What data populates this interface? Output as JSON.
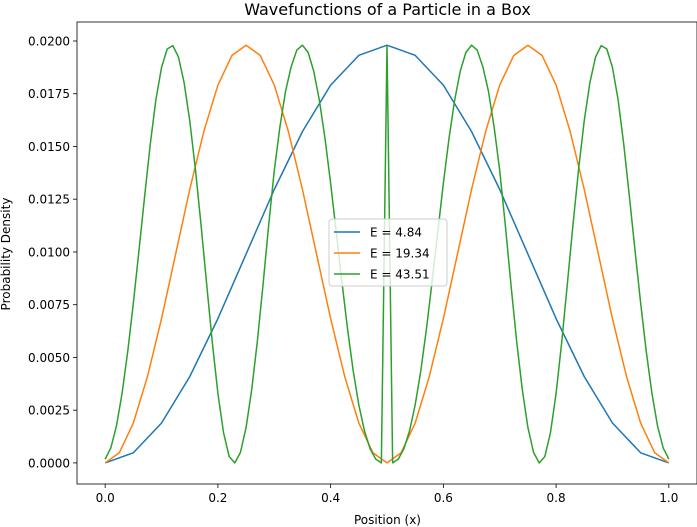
{
  "chart_data": {
    "type": "line",
    "title": "Wavefunctions of a Particle in a Box",
    "xlabel": "Position (x)",
    "ylabel": "Probability Density",
    "xlim": [
      -0.05,
      1.05
    ],
    "ylim": [
      -0.001,
      0.0209
    ],
    "xticks": [
      0.0,
      0.2,
      0.4,
      0.6,
      0.8,
      1.0
    ],
    "xtick_labels": [
      "0.0",
      "0.2",
      "0.4",
      "0.6",
      "0.8",
      "1.0"
    ],
    "yticks": [
      0.0,
      0.0025,
      0.005,
      0.0075,
      0.01,
      0.0125,
      0.015,
      0.0175,
      0.02
    ],
    "ytick_labels": [
      "0.0000",
      "0.0025",
      "0.0050",
      "0.0075",
      "0.0100",
      "0.0125",
      "0.0150",
      "0.0175",
      "0.0200"
    ],
    "grid": false,
    "legend_position": "center",
    "series": [
      {
        "name": "E = 4.84",
        "color": "#1f77b4",
        "x": [
          0.0,
          0.05,
          0.1,
          0.15,
          0.2,
          0.25,
          0.3,
          0.35,
          0.4,
          0.45,
          0.5,
          0.55,
          0.6,
          0.65,
          0.7,
          0.75,
          0.8,
          0.85,
          0.9,
          0.95,
          1.0
        ],
        "y": [
          0.0,
          0.00048,
          0.00189,
          0.00409,
          0.00684,
          0.0099,
          0.01296,
          0.01571,
          0.01791,
          0.01932,
          0.0198,
          0.01932,
          0.01791,
          0.01571,
          0.01296,
          0.0099,
          0.00684,
          0.00409,
          0.00189,
          0.00048,
          0.0
        ]
      },
      {
        "name": "E = 19.34",
        "color": "#ff7f0e",
        "x": [
          0.0,
          0.025,
          0.05,
          0.075,
          0.1,
          0.125,
          0.15,
          0.175,
          0.2,
          0.225,
          0.25,
          0.275,
          0.3,
          0.325,
          0.35,
          0.375,
          0.4,
          0.425,
          0.45,
          0.475,
          0.5,
          0.525,
          0.55,
          0.575,
          0.6,
          0.625,
          0.65,
          0.675,
          0.7,
          0.725,
          0.75,
          0.775,
          0.8,
          0.825,
          0.85,
          0.875,
          0.9,
          0.925,
          0.95,
          0.975,
          1.0
        ],
        "y": [
          0.0,
          0.00048,
          0.00189,
          0.00409,
          0.00684,
          0.0099,
          0.01296,
          0.01571,
          0.01791,
          0.01932,
          0.0198,
          0.01932,
          0.01791,
          0.01571,
          0.01296,
          0.0099,
          0.00684,
          0.00409,
          0.00189,
          0.00048,
          0.0,
          0.00048,
          0.00189,
          0.00409,
          0.00684,
          0.0099,
          0.01296,
          0.01571,
          0.01791,
          0.01932,
          0.0198,
          0.01932,
          0.01791,
          0.01571,
          0.01296,
          0.0099,
          0.00684,
          0.00409,
          0.00189,
          0.00048,
          0.0
        ]
      },
      {
        "name": "E = 43.51",
        "color": "#2ca02c",
        "x": [
          0.0,
          0.01,
          0.02,
          0.03,
          0.04,
          0.05,
          0.06,
          0.07,
          0.08,
          0.09,
          0.1,
          0.11,
          0.12,
          0.13,
          0.14,
          0.15,
          0.16,
          0.17,
          0.18,
          0.19,
          0.2,
          0.21,
          0.22,
          0.23,
          0.24,
          0.25,
          0.26,
          0.27,
          0.28,
          0.29,
          0.3,
          0.31,
          0.32,
          0.33,
          0.34,
          0.35,
          0.36,
          0.37,
          0.38,
          0.39,
          0.4,
          0.41,
          0.42,
          0.43,
          0.44,
          0.45,
          0.46,
          0.47,
          0.48,
          0.49,
          0.5,
          0.51,
          0.52,
          0.53,
          0.54,
          0.55,
          0.56,
          0.57,
          0.58,
          0.59,
          0.6,
          0.61,
          0.62,
          0.63,
          0.64,
          0.65,
          0.66,
          0.67,
          0.68,
          0.69,
          0.7,
          0.71,
          0.72,
          0.73,
          0.74,
          0.75,
          0.76,
          0.77,
          0.78,
          0.79,
          0.8,
          0.81,
          0.82,
          0.83,
          0.84,
          0.85,
          0.86,
          0.87,
          0.88,
          0.89,
          0.9,
          0.91,
          0.92,
          0.93,
          0.94,
          0.95,
          0.96,
          0.97,
          0.98,
          0.99,
          1.0
        ],
        "y": [
          0.00018,
          0.00071,
          0.00175,
          0.0033,
          0.00528,
          0.00758,
          0.01008,
          0.01264,
          0.01511,
          0.01722,
          0.01875,
          0.01962,
          0.01978,
          0.01924,
          0.01803,
          0.01623,
          0.01394,
          0.0113,
          0.00849,
          0.00573,
          0.00329,
          0.00143,
          0.0003,
          0.0,
          0.0005,
          0.00168,
          0.00348,
          0.00577,
          0.00843,
          0.01125,
          0.01386,
          0.01593,
          0.01762,
          0.01878,
          0.01957,
          0.0198,
          0.01946,
          0.01857,
          0.01719,
          0.01538,
          0.01325,
          0.01093,
          0.00859,
          0.00635,
          0.00437,
          0.00275,
          0.00152,
          0.00067,
          0.00018,
          0.0,
          0.0198,
          0.0,
          0.00018,
          0.00067,
          0.00152,
          0.00275,
          0.00437,
          0.00635,
          0.00859,
          0.01093,
          0.01325,
          0.01538,
          0.01719,
          0.01857,
          0.01946,
          0.0198,
          0.01957,
          0.01878,
          0.01762,
          0.01593,
          0.01386,
          0.01125,
          0.00843,
          0.00577,
          0.00348,
          0.00168,
          0.0005,
          0.0,
          0.0003,
          0.00143,
          0.00329,
          0.00573,
          0.00849,
          0.0113,
          0.01394,
          0.01623,
          0.01803,
          0.01924,
          0.01978,
          0.01962,
          0.01875,
          0.01722,
          0.01511,
          0.01264,
          0.01008,
          0.00758,
          0.00528,
          0.0033,
          0.00175,
          0.00071,
          0.00018
        ]
      }
    ]
  }
}
